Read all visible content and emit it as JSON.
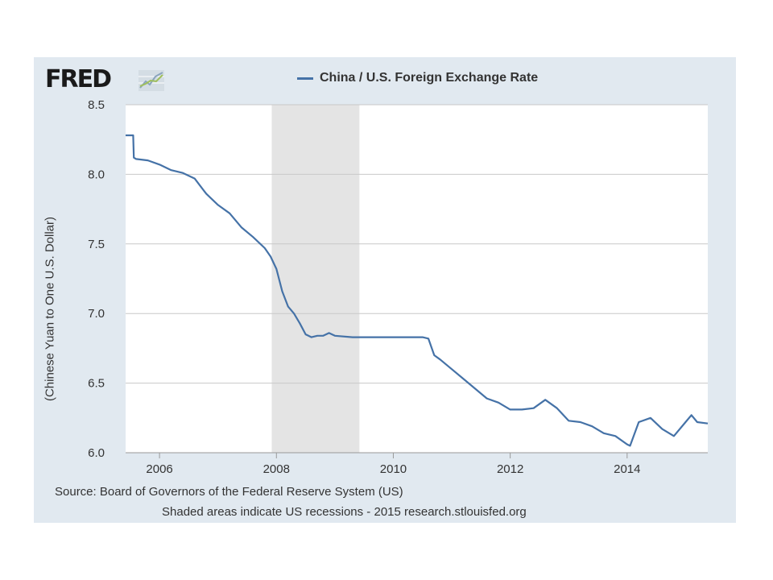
{
  "logo": {
    "text": "FRED",
    "icon": "line-chart-icon"
  },
  "legend": {
    "label": "China / U.S. Foreign Exchange Rate",
    "color": "#4572a7"
  },
  "footer": {
    "source": "Source: Board of Governors of the Federal Reserve System (US)",
    "note": "Shaded areas indicate US recessions - 2015 research.stlouisfed.org"
  },
  "chart_data": {
    "type": "line",
    "title": "",
    "ylabel": "(Chinese Yuan to One U.S. Dollar)",
    "xlabel": "",
    "ylim": [
      6.0,
      8.5
    ],
    "xlim": [
      2005.42,
      2015.38
    ],
    "x_ticks": [
      "2006",
      "2008",
      "2010",
      "2012",
      "2014"
    ],
    "y_ticks": [
      "6.0",
      "6.5",
      "7.0",
      "7.5",
      "8.0",
      "8.5"
    ],
    "grid": "horizontal",
    "recessions": [
      {
        "start": 2007.92,
        "end": 2009.42
      }
    ],
    "series": [
      {
        "color": "#4572a7",
        "x": [
          2005.42,
          2005.55,
          2005.56,
          2005.6,
          2005.8,
          2006.0,
          2006.2,
          2006.4,
          2006.6,
          2006.8,
          2007.0,
          2007.2,
          2007.4,
          2007.6,
          2007.8,
          2007.9,
          2008.0,
          2008.1,
          2008.2,
          2008.3,
          2008.4,
          2008.5,
          2008.6,
          2008.7,
          2008.8,
          2008.9,
          2009.0,
          2009.3,
          2009.6,
          2010.0,
          2010.3,
          2010.5,
          2010.6,
          2010.7,
          2010.8,
          2011.0,
          2011.2,
          2011.4,
          2011.6,
          2011.8,
          2012.0,
          2012.2,
          2012.4,
          2012.6,
          2012.8,
          2013.0,
          2013.2,
          2013.4,
          2013.6,
          2013.8,
          2014.0,
          2014.05,
          2014.2,
          2014.4,
          2014.6,
          2014.8,
          2015.0,
          2015.1,
          2015.2,
          2015.38
        ],
        "y": [
          8.28,
          8.28,
          8.12,
          8.11,
          8.1,
          8.07,
          8.03,
          8.01,
          7.97,
          7.86,
          7.78,
          7.72,
          7.62,
          7.55,
          7.47,
          7.41,
          7.32,
          7.16,
          7.05,
          7.0,
          6.93,
          6.85,
          6.83,
          6.84,
          6.84,
          6.86,
          6.84,
          6.83,
          6.83,
          6.83,
          6.83,
          6.83,
          6.82,
          6.7,
          6.67,
          6.6,
          6.53,
          6.46,
          6.39,
          6.36,
          6.31,
          6.31,
          6.32,
          6.38,
          6.32,
          6.23,
          6.22,
          6.19,
          6.14,
          6.12,
          6.06,
          6.05,
          6.22,
          6.25,
          6.17,
          6.12,
          6.22,
          6.27,
          6.22,
          6.21
        ]
      }
    ]
  }
}
